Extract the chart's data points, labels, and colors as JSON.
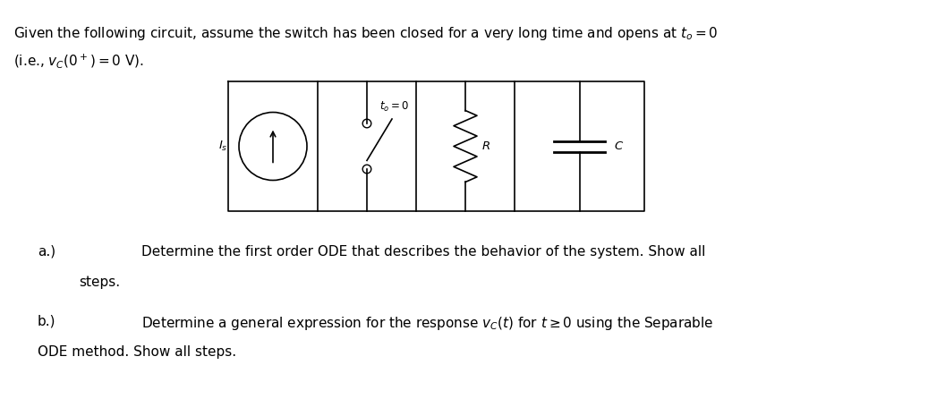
{
  "bg_color": "#ffffff",
  "text_color": "#000000",
  "fig_width": 10.37,
  "fig_height": 4.46,
  "title_line1": "Given the following circuit, assume the switch has been closed for a very long time and opens at $t_o = 0$",
  "title_line2": "(i.e., $v_C(0^+) = 0$ V).",
  "part_a_label": "a.)",
  "part_a_text": "Determine the first order ODE that describes the behavior of the system. Show all",
  "part_a_cont": "steps.",
  "part_b_label": "b.)",
  "part_b_text": "Determine a general expression for the response $v_C(t)$ for $t \\geq 0$ using the Separable",
  "part_b_cont": "ODE method. Show all steps.",
  "font_size_main": 11,
  "font_size_circuit": 9.5
}
